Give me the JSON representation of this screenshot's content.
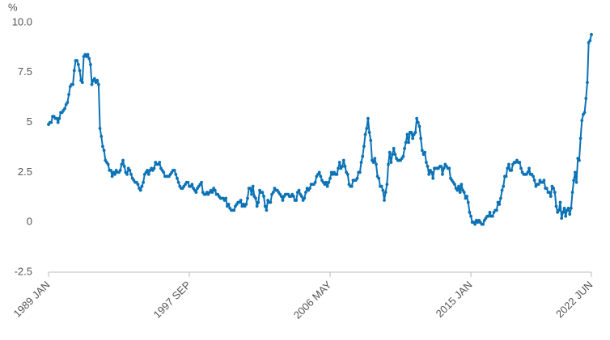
{
  "chart_data": {
    "type": "line",
    "y_label": "%",
    "categories": [
      "1989 JAN",
      null,
      null,
      null,
      null,
      null,
      null,
      null,
      null,
      null,
      null,
      null,
      null,
      null,
      null,
      null,
      null,
      null,
      null,
      null,
      null,
      null,
      null,
      null,
      null,
      null,
      null,
      null,
      null,
      null,
      null,
      null,
      null,
      null,
      null,
      null,
      null,
      null,
      null,
      null,
      null,
      null,
      null,
      null,
      null,
      null,
      null,
      null,
      null,
      null,
      null,
      null,
      null,
      null,
      null,
      null,
      null,
      null,
      null,
      null,
      null,
      null,
      null,
      null,
      null,
      null,
      null,
      null,
      null,
      null,
      null,
      null,
      null,
      null,
      null,
      null,
      null,
      null,
      null,
      null,
      null,
      null,
      null,
      null,
      null,
      null,
      null,
      null,
      null,
      null,
      null,
      null,
      null,
      null,
      null,
      null,
      null,
      null,
      null,
      null,
      null,
      null,
      null,
      null,
      "1997 SEP",
      null,
      null,
      null,
      null,
      null,
      null,
      null,
      null,
      null,
      null,
      null,
      null,
      null,
      null,
      null,
      null,
      null,
      null,
      null,
      null,
      null,
      null,
      null,
      null,
      null,
      null,
      null,
      null,
      null,
      null,
      null,
      null,
      null,
      null,
      null,
      null,
      null,
      null,
      null,
      null,
      null,
      null,
      null,
      null,
      null,
      null,
      null,
      null,
      null,
      null,
      null,
      null,
      null,
      null,
      null,
      null,
      null,
      null,
      null,
      null,
      null,
      null,
      null,
      null,
      null,
      null,
      null,
      null,
      null,
      null,
      null,
      null,
      null,
      null,
      null,
      null,
      null,
      null,
      null,
      null,
      null,
      null,
      null,
      null,
      null,
      null,
      null,
      null,
      null,
      null,
      null,
      null,
      null,
      null,
      null,
      null,
      null,
      null,
      null,
      null,
      null,
      null,
      null,
      "2006 MAY",
      null,
      null,
      null,
      null,
      null,
      null,
      null,
      null,
      null,
      null,
      null,
      null,
      null,
      null,
      null,
      null,
      null,
      null,
      null,
      null,
      null,
      null,
      null,
      null,
      null,
      null,
      null,
      null,
      null,
      null,
      null,
      null,
      null,
      null,
      null,
      null,
      null,
      null,
      null,
      null,
      null,
      null,
      null,
      null,
      null,
      null,
      null,
      null,
      null,
      null,
      null,
      null,
      null,
      null,
      null,
      null,
      null,
      null,
      null,
      null,
      null,
      null,
      null,
      null,
      null,
      null,
      null,
      null,
      null,
      null,
      null,
      null,
      null,
      null,
      null,
      null,
      null,
      null,
      null,
      null,
      null,
      null,
      null,
      null,
      null,
      null,
      null,
      null,
      null,
      null,
      null,
      null,
      null,
      null,
      null,
      null,
      null,
      null,
      null,
      null,
      null,
      null,
      null,
      "2015 JAN",
      null,
      null,
      null,
      null,
      null,
      null,
      null,
      null,
      null,
      null,
      null,
      null,
      null,
      null,
      null,
      null,
      null,
      null,
      null,
      null,
      null,
      null,
      null,
      null,
      null,
      null,
      null,
      null,
      null,
      null,
      null,
      null,
      null,
      null,
      null,
      null,
      null,
      null,
      null,
      null,
      null,
      null,
      null,
      null,
      null,
      null,
      null,
      null,
      null,
      null,
      null,
      null,
      null,
      null,
      null,
      null,
      null,
      null,
      null,
      null,
      null,
      null,
      null,
      null,
      null,
      null,
      null,
      null,
      null,
      null,
      null,
      null,
      null,
      null,
      null,
      null,
      null,
      null,
      null,
      null,
      null,
      null,
      null,
      null,
      null,
      null,
      null,
      null,
      "2022 JUN"
    ],
    "values": [
      4.9,
      5.0,
      5.0,
      5.3,
      5.3,
      5.2,
      5.2,
      5.0,
      5.2,
      5.5,
      5.5,
      5.6,
      5.7,
      5.9,
      6.0,
      6.4,
      6.8,
      6.9,
      6.9,
      7.6,
      8.1,
      8.1,
      7.9,
      7.6,
      7.1,
      7.0,
      8.3,
      8.4,
      8.3,
      8.4,
      8.2,
      7.9,
      6.9,
      7.1,
      7.2,
      7.0,
      7.1,
      6.9,
      4.7,
      4.3,
      3.8,
      3.6,
      3.1,
      3.0,
      2.9,
      2.6,
      2.6,
      2.3,
      2.5,
      2.4,
      2.6,
      2.5,
      2.5,
      2.6,
      2.9,
      3.1,
      2.8,
      2.5,
      2.4,
      2.7,
      2.6,
      2.4,
      2.2,
      2.1,
      2.0,
      2.0,
      1.9,
      1.7,
      1.6,
      1.8,
      2.0,
      2.4,
      2.5,
      2.6,
      2.4,
      2.6,
      2.7,
      2.6,
      2.7,
      3.0,
      2.9,
      2.9,
      3.0,
      2.7,
      2.6,
      2.5,
      2.3,
      2.3,
      2.3,
      2.3,
      2.4,
      2.5,
      2.6,
      2.6,
      2.4,
      2.2,
      2.0,
      1.8,
      1.7,
      1.7,
      1.8,
      1.9,
      2.0,
      2.0,
      1.8,
      1.8,
      1.9,
      1.7,
      1.6,
      1.5,
      1.7,
      1.8,
      1.9,
      2.0,
      1.5,
      1.4,
      1.4,
      1.5,
      1.4,
      1.5,
      1.6,
      1.5,
      1.7,
      1.6,
      1.4,
      1.4,
      1.3,
      1.2,
      1.2,
      1.2,
      1.1,
      1.2,
      0.8,
      0.9,
      0.7,
      0.6,
      0.6,
      0.6,
      0.8,
      0.9,
      1.0,
      1.0,
      1.1,
      0.8,
      0.9,
      0.8,
      0.9,
      1.2,
      1.7,
      1.7,
      1.4,
      1.8,
      1.3,
      1.2,
      0.8,
      1.0,
      1.6,
      1.5,
      1.5,
      1.3,
      0.8,
      0.6,
      1.1,
      1.0,
      1.0,
      1.4,
      1.5,
      1.7,
      1.6,
      1.6,
      1.5,
      1.4,
      1.3,
      1.1,
      1.3,
      1.4,
      1.4,
      1.4,
      1.3,
      1.3,
      1.4,
      1.3,
      1.1,
      1.1,
      1.5,
      1.6,
      1.4,
      1.3,
      1.1,
      1.2,
      1.5,
      1.7,
      1.6,
      1.7,
      1.9,
      1.9,
      1.9,
      2.0,
      2.3,
      2.4,
      2.5,
      2.3,
      2.1,
      2.0,
      1.9,
      2.0,
      1.8,
      2.0,
      2.2,
      2.5,
      2.4,
      2.5,
      2.4,
      2.4,
      2.7,
      3.0,
      2.7,
      2.8,
      3.1,
      2.8,
      2.5,
      2.4,
      1.9,
      1.8,
      1.8,
      2.1,
      2.1,
      2.1,
      2.2,
      2.5,
      2.5,
      3.0,
      3.3,
      3.8,
      4.4,
      4.7,
      5.2,
      4.5,
      4.1,
      3.1,
      3.0,
      3.2,
      2.9,
      2.3,
      2.2,
      1.8,
      1.8,
      1.6,
      1.1,
      1.5,
      1.9,
      2.9,
      3.5,
      3.0,
      3.4,
      3.7,
      3.4,
      3.2,
      3.1,
      3.1,
      3.1,
      3.2,
      3.3,
      3.7,
      4.0,
      4.4,
      4.0,
      4.5,
      4.5,
      4.2,
      4.4,
      4.5,
      5.2,
      5.0,
      4.8,
      4.2,
      3.6,
      3.4,
      3.5,
      3.0,
      2.8,
      2.4,
      2.6,
      2.5,
      2.2,
      2.7,
      2.7,
      2.7,
      2.7,
      2.8,
      2.8,
      2.4,
      2.7,
      2.9,
      2.8,
      2.7,
      2.7,
      2.2,
      2.1,
      2.0,
      1.9,
      1.7,
      1.6,
      1.8,
      1.5,
      1.9,
      1.6,
      1.5,
      1.2,
      1.3,
      1.0,
      0.5,
      0.3,
      0.0,
      0.0,
      -0.1,
      0.1,
      0.0,
      0.1,
      0.0,
      -0.1,
      -0.1,
      0.1,
      0.2,
      0.3,
      0.3,
      0.5,
      0.3,
      0.3,
      0.5,
      0.6,
      0.6,
      1.0,
      0.9,
      1.2,
      1.6,
      1.8,
      2.3,
      2.3,
      2.7,
      2.9,
      2.6,
      2.6,
      2.9,
      3.0,
      3.0,
      3.1,
      3.0,
      3.0,
      2.7,
      2.5,
      2.4,
      2.4,
      2.4,
      2.5,
      2.7,
      2.4,
      2.4,
      2.3,
      2.1,
      1.8,
      1.9,
      1.9,
      2.1,
      2.0,
      2.0,
      2.1,
      1.7,
      1.7,
      1.5,
      1.5,
      1.3,
      1.8,
      1.7,
      1.5,
      0.8,
      0.5,
      0.6,
      1.0,
      0.2,
      0.5,
      0.7,
      0.3,
      0.6,
      0.7,
      0.4,
      0.7,
      1.5,
      2.1,
      2.5,
      2.0,
      3.2,
      3.1,
      4.2,
      5.1,
      5.4,
      5.5,
      6.2,
      7.0,
      9.0,
      9.1,
      9.4
    ],
    "color": "#0b72b5",
    "ylim": [
      -2.5,
      10
    ],
    "yticks": [
      {
        "value": -2.5,
        "label": "-2.5"
      },
      0,
      2.5,
      5,
      {
        "value": 7.5,
        "label": "7.5"
      },
      {
        "value": 10,
        "label": "10.0"
      }
    ],
    "grid": false
  }
}
